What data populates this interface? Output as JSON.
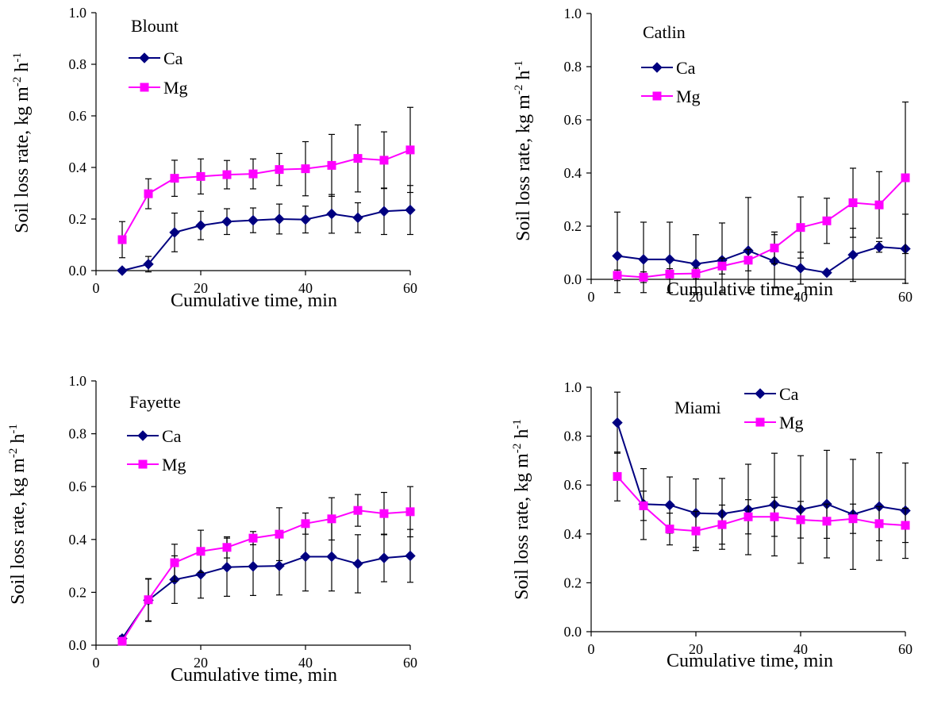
{
  "colors": {
    "Ca": "#000080",
    "Mg": "#ff00ff",
    "axis": "#000000",
    "error_bar": "#000000"
  },
  "chart_data": [
    {
      "type": "line",
      "panel": "Blount",
      "x": [
        5,
        10,
        15,
        20,
        25,
        30,
        35,
        40,
        45,
        50,
        55,
        60
      ],
      "xlabel": "Cumulative time, min",
      "ylabel": "Soil loss rate,  kg m",
      "ylabel_sup1": "-2",
      "ylabel_mid": " h",
      "ylabel_sup2": "-1",
      "xlim": [
        0,
        60
      ],
      "ylim": [
        0,
        1.0
      ],
      "xticks": [
        "0",
        "20",
        "40",
        "60"
      ],
      "yticks": [
        "0.0",
        "0.2",
        "0.4",
        "0.6",
        "0.8",
        "1.0"
      ],
      "legend_position": "top-left",
      "series": [
        {
          "name": "Ca",
          "marker": "diamond",
          "values": [
            0.0,
            0.025,
            0.148,
            0.175,
            0.19,
            0.195,
            0.2,
            0.198,
            0.22,
            0.205,
            0.23,
            0.235
          ],
          "errors": [
            0.005,
            0.03,
            0.075,
            0.055,
            0.05,
            0.048,
            0.058,
            0.052,
            0.075,
            0.058,
            0.09,
            0.095
          ]
        },
        {
          "name": "Mg",
          "marker": "square",
          "values": [
            0.12,
            0.298,
            0.358,
            0.365,
            0.372,
            0.375,
            0.392,
            0.395,
            0.408,
            0.435,
            0.428,
            0.468
          ],
          "errors": [
            0.07,
            0.058,
            0.07,
            0.068,
            0.055,
            0.058,
            0.062,
            0.105,
            0.12,
            0.13,
            0.11,
            0.165
          ]
        }
      ]
    },
    {
      "type": "line",
      "panel": "Catlin",
      "x": [
        5,
        10,
        15,
        20,
        25,
        30,
        35,
        40,
        45,
        50,
        55,
        60
      ],
      "xlabel": "Cumulative time, min",
      "ylabel": "Soil loss rate,  kg m",
      "ylabel_sup1": "-2",
      "ylabel_mid": " h",
      "ylabel_sup2": "-1",
      "xlim": [
        0,
        60
      ],
      "ylim": [
        0,
        1.0
      ],
      "xticks": [
        "0",
        "20",
        "40",
        "60"
      ],
      "yticks": [
        "0.0",
        "0.2",
        "0.4",
        "0.6",
        "0.8",
        "1.0"
      ],
      "legend_position": "top-left",
      "series": [
        {
          "name": "Ca",
          "marker": "diamond",
          "values": [
            0.088,
            0.075,
            0.075,
            0.058,
            0.072,
            0.108,
            0.068,
            0.042,
            0.025,
            0.092,
            0.122,
            0.115
          ],
          "errors": [
            0.165,
            0.14,
            0.14,
            0.11,
            0.14,
            0.2,
            0.1,
            0.06,
            0.0,
            0.1,
            0.02,
            0.13
          ]
        },
        {
          "name": "Mg",
          "marker": "square",
          "values": [
            0.015,
            0.008,
            0.02,
            0.022,
            0.05,
            0.072,
            0.118,
            0.195,
            0.22,
            0.288,
            0.28,
            0.382
          ],
          "errors": [
            0.02,
            0.02,
            0.02,
            0.02,
            0.03,
            0.04,
            0.06,
            0.115,
            0.085,
            0.13,
            0.125,
            0.285
          ]
        }
      ]
    },
    {
      "type": "line",
      "panel": "Fayette",
      "x": [
        5,
        10,
        15,
        20,
        25,
        30,
        35,
        40,
        45,
        50,
        55,
        60
      ],
      "xlabel": "Cumulative time, min",
      "ylabel": "Soil loss rate,  kg m",
      "ylabel_sup1": "-2",
      "ylabel_mid": " h",
      "ylabel_sup2": "-1",
      "xlim": [
        0,
        60
      ],
      "ylim": [
        0,
        1.0
      ],
      "xticks": [
        "0",
        "20",
        "40",
        "60"
      ],
      "yticks": [
        "0.0",
        "0.2",
        "0.4",
        "0.6",
        "0.8",
        "1.0"
      ],
      "legend_position": "top-left",
      "series": [
        {
          "name": "Ca",
          "marker": "diamond",
          "values": [
            0.025,
            0.17,
            0.248,
            0.268,
            0.295,
            0.298,
            0.3,
            0.335,
            0.335,
            0.308,
            0.33,
            0.338
          ],
          "errors": [
            0.01,
            0.08,
            0.09,
            0.09,
            0.11,
            0.11,
            0.11,
            0.13,
            0.13,
            0.11,
            0.09,
            0.1
          ]
        },
        {
          "name": "Mg",
          "marker": "square",
          "values": [
            0.015,
            0.172,
            0.312,
            0.355,
            0.37,
            0.405,
            0.42,
            0.46,
            0.478,
            0.51,
            0.498,
            0.505
          ],
          "errors": [
            0.01,
            0.08,
            0.07,
            0.08,
            0.04,
            0.025,
            0.1,
            0.04,
            0.08,
            0.06,
            0.08,
            0.095
          ]
        }
      ]
    },
    {
      "type": "line",
      "panel": "Miami",
      "x": [
        5,
        10,
        15,
        20,
        25,
        30,
        35,
        40,
        45,
        50,
        55,
        60
      ],
      "xlabel": "Cumulative time, min",
      "ylabel": "Soil loss rate,  kg m",
      "ylabel_sup1": "-2",
      "ylabel_mid": " h",
      "ylabel_sup2": "-1",
      "xlim": [
        0,
        60
      ],
      "ylim": [
        0,
        1.0
      ],
      "xticks": [
        "0",
        "20",
        "40",
        "60"
      ],
      "yticks": [
        "0.0",
        "0.2",
        "0.4",
        "0.6",
        "0.8",
        "1.0"
      ],
      "legend_position": "top-right",
      "series": [
        {
          "name": "Ca",
          "marker": "diamond",
          "values": [
            0.855,
            0.522,
            0.518,
            0.485,
            0.482,
            0.5,
            0.52,
            0.5,
            0.522,
            0.48,
            0.512,
            0.495
          ],
          "errors": [
            0.125,
            0.145,
            0.115,
            0.14,
            0.145,
            0.185,
            0.21,
            0.22,
            0.22,
            0.225,
            0.22,
            0.195
          ]
        },
        {
          "name": "Mg",
          "marker": "square",
          "values": [
            0.635,
            0.515,
            0.42,
            0.412,
            0.438,
            0.47,
            0.47,
            0.458,
            0.452,
            0.462,
            0.442,
            0.435
          ],
          "errors": [
            0.1,
            0.06,
            0.065,
            0.08,
            0.08,
            0.07,
            0.08,
            0.075,
            0.07,
            0.06,
            0.07,
            0.07
          ]
        }
      ]
    }
  ]
}
